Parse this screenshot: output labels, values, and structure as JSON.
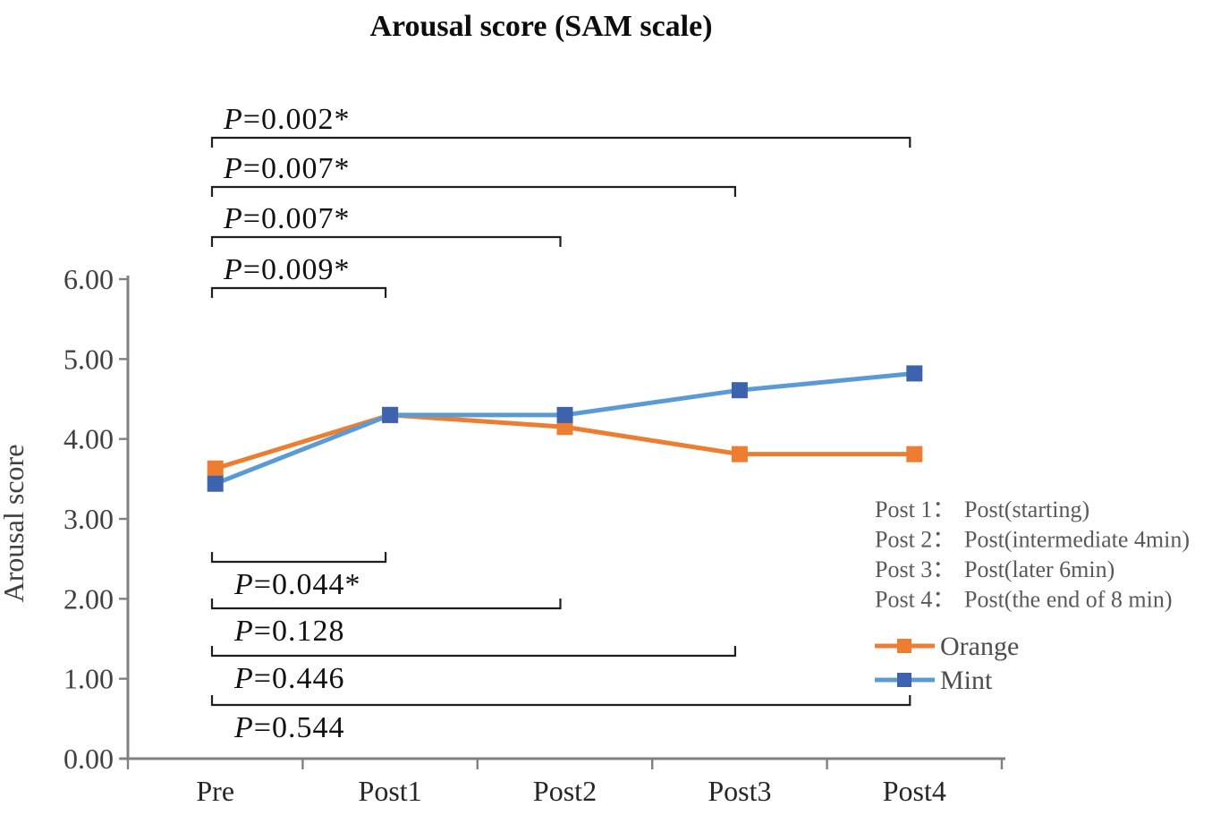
{
  "chart_data": {
    "type": "line",
    "title": "Arousal score (SAM scale)",
    "ylabel": "Arousal score",
    "xlabel": "",
    "categories": [
      "Pre",
      "Post1",
      "Post2",
      "Post3",
      "Post4"
    ],
    "series": [
      {
        "name": "Orange",
        "line_color": "#ED7D31",
        "marker_color": "#ED7D31",
        "values": [
          3.63,
          4.3,
          4.15,
          3.81,
          3.81
        ]
      },
      {
        "name": "Mint",
        "line_color": "#5B9BD5",
        "marker_color": "#3D63AE",
        "values": [
          3.44,
          4.3,
          4.3,
          4.61,
          4.82
        ]
      }
    ],
    "ylim": [
      0,
      6
    ],
    "ytick_labels": [
      "0.00",
      "1.00",
      "2.00",
      "3.00",
      "4.00",
      "5.00",
      "6.00"
    ],
    "grid": false,
    "legend_position": "right-middle",
    "annotations": {
      "top_brackets": [
        {
          "label": "P=0.002*",
          "from": "Pre",
          "to": "Post4"
        },
        {
          "label": "P=0.007*",
          "from": "Pre",
          "to": "Post3"
        },
        {
          "label": "P=0.007*",
          "from": "Pre",
          "to": "Post2"
        },
        {
          "label": "P=0.009*",
          "from": "Pre",
          "to": "Post1"
        }
      ],
      "bottom_brackets": [
        {
          "label": "P=0.044*",
          "from": "Pre",
          "to": "Post1"
        },
        {
          "label": "P=0.128",
          "from": "Pre",
          "to": "Post2"
        },
        {
          "label": "P=0.446",
          "from": "Pre",
          "to": "Post3"
        },
        {
          "label": "P=0.544",
          "from": "Pre",
          "to": "Post4"
        }
      ]
    },
    "notes": [
      {
        "label": "Post 1：",
        "text": "Post(starting)"
      },
      {
        "label": "Post 2：",
        "text": "Post(intermediate 4min)"
      },
      {
        "label": "Post 3：",
        "text": "Post(later 6min)"
      },
      {
        "label": "Post 4：",
        "text": "Post(the end of 8 min)"
      }
    ],
    "colors": {
      "axis": "#808080",
      "bracket": "#1f1f1f",
      "p_label_text": "#111111",
      "tick_label_text": "#404040",
      "x_label_text": "#262626",
      "note_text": "#595959",
      "legend_text": "#4d4d4d"
    }
  }
}
